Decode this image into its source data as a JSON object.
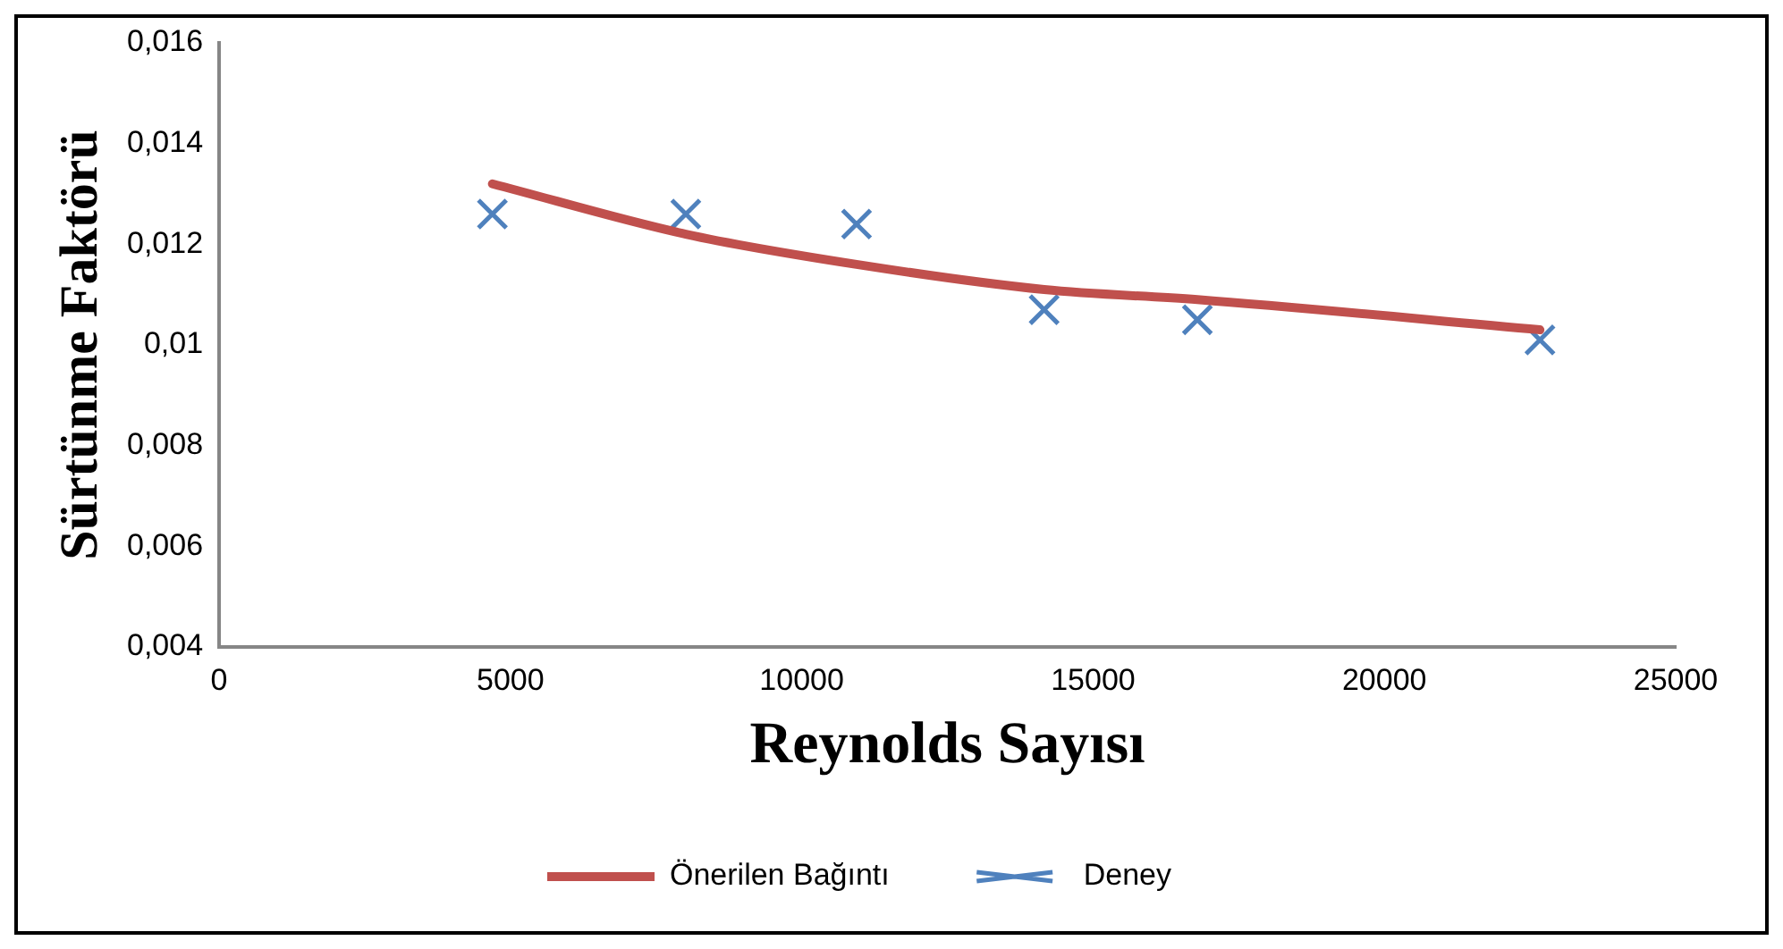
{
  "chart_data": {
    "type": "scatter",
    "xlabel": "Reynolds Sayısı",
    "ylabel": "Sürtünme Faktörü",
    "xlim": [
      0,
      25000
    ],
    "xticks": [
      0,
      5000,
      10000,
      15000,
      20000,
      25000
    ],
    "ylim": [
      0.004,
      0.016
    ],
    "yticks": [
      {
        "value": 0.004,
        "label": "0,004"
      },
      {
        "value": 0.006,
        "label": "0,006"
      },
      {
        "value": 0.008,
        "label": "0,008"
      },
      {
        "value": 0.01,
        "label": "0,01"
      },
      {
        "value": 0.012,
        "label": "0,012"
      },
      {
        "value": 0.014,
        "label": "0,014"
      },
      {
        "value": 0.016,
        "label": "0,016"
      }
    ],
    "grid": false,
    "legend": "bottom",
    "series": [
      {
        "name": "Önerilen Bağıntı",
        "type": "line",
        "color": "#c0504d",
        "marker": "none",
        "line_style": "solid",
        "x": [
          4690,
          8010,
          10940,
          14160,
          16790,
          22670
        ],
        "values": [
          0.0132,
          0.0122,
          0.0116,
          0.0111,
          0.0109,
          0.0103
        ]
      },
      {
        "name": "Deney",
        "type": "scatter",
        "color": "#4f81bd",
        "marker": "cross",
        "x": [
          4690,
          8010,
          10940,
          14160,
          16790,
          22670
        ],
        "values": [
          0.0126,
          0.0126,
          0.0124,
          0.0107,
          0.0105,
          0.0101
        ]
      }
    ]
  }
}
